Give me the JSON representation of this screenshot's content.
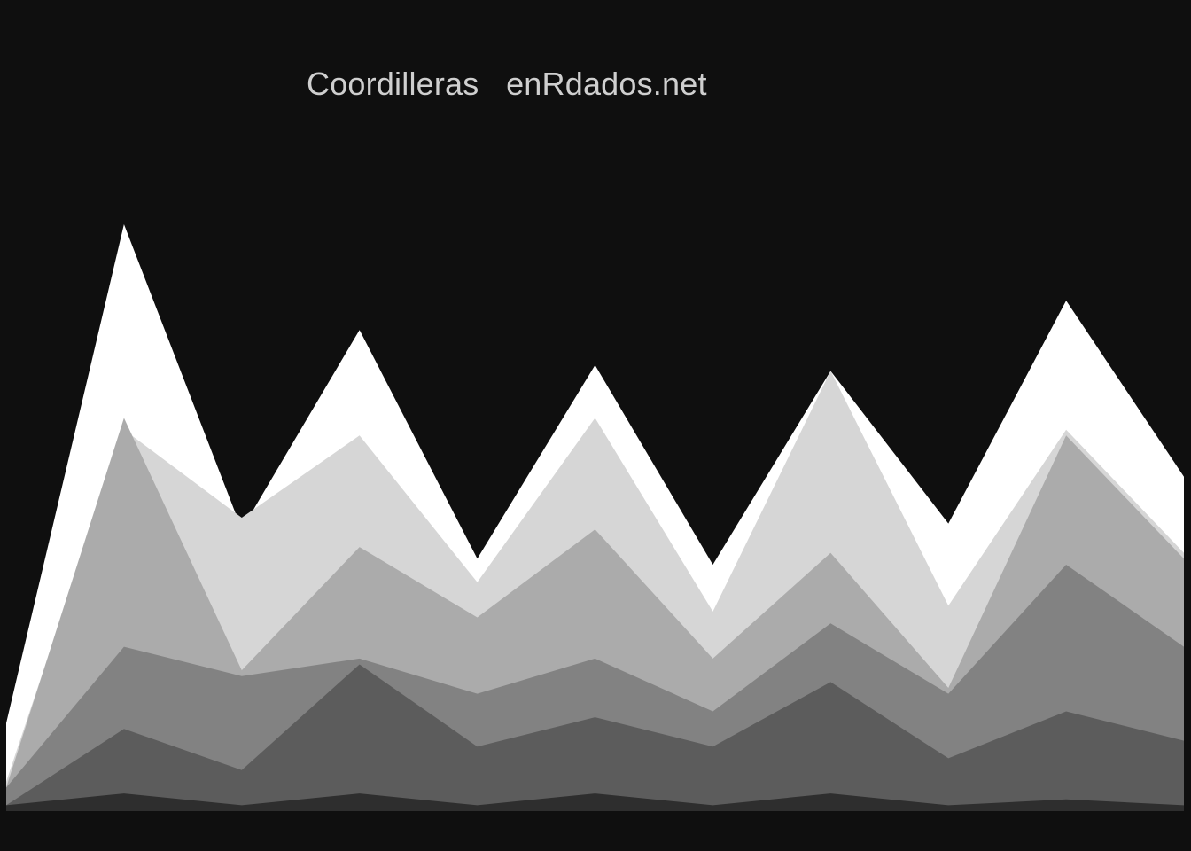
{
  "title": "Coordilleras   enRdados.net",
  "chart_data": {
    "type": "area",
    "title": "Coordilleras   enRdados.net",
    "xlabel": "",
    "ylabel": "",
    "x": [
      0,
      1,
      2,
      3,
      4,
      5,
      6,
      7,
      8,
      9,
      10
    ],
    "ylim": [
      0,
      100
    ],
    "grid": false,
    "legend": "none",
    "series": [
      {
        "color": "#ffffff",
        "values": [
          15,
          100,
          48,
          82,
          43,
          76,
          42,
          75,
          49,
          87,
          57
        ]
      },
      {
        "color": "#d6d6d6",
        "values": [
          5,
          65,
          50,
          64,
          39,
          67,
          34,
          75,
          35,
          65,
          44
        ]
      },
      {
        "color": "#ababab",
        "values": [
          4,
          67,
          24,
          45,
          33,
          48,
          26,
          44,
          21,
          64,
          43
        ]
      },
      {
        "color": "#828282",
        "values": [
          4,
          28,
          23,
          26,
          20,
          26,
          17,
          32,
          20,
          42,
          28
        ]
      },
      {
        "color": "#5c5c5c",
        "values": [
          1,
          14,
          7,
          25,
          11,
          16,
          11,
          22,
          9,
          17,
          12
        ]
      },
      {
        "color": "#2e2e2e",
        "values": [
          1,
          3,
          1,
          3,
          1,
          3,
          1,
          3,
          1,
          2,
          1
        ]
      }
    ]
  }
}
